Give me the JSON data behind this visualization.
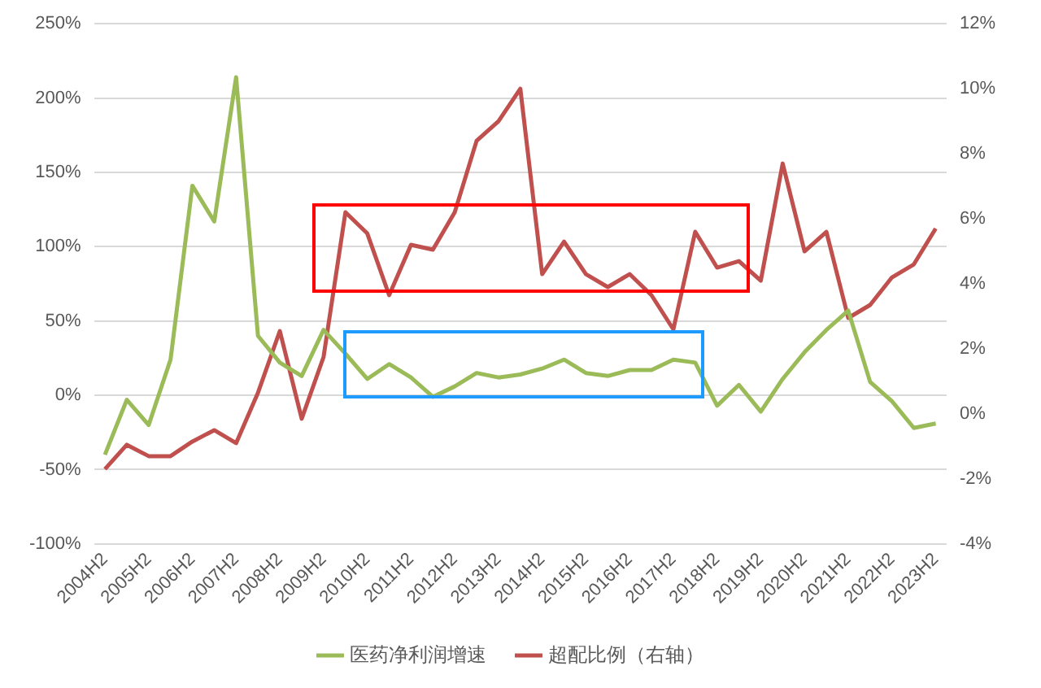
{
  "chart_data": {
    "type": "line",
    "categories": [
      "2004H2",
      null,
      "2005H2",
      null,
      "2006H2",
      null,
      "2007H2",
      null,
      "2008H2",
      null,
      "2009H2",
      null,
      "2010H2",
      null,
      "2011H2",
      null,
      "2012H2",
      null,
      "2013H2",
      null,
      "2014H2",
      null,
      "2015H2",
      null,
      "2016H2",
      null,
      "2017H2",
      null,
      "2018H2",
      null,
      "2019H2",
      null,
      "2020H2",
      null,
      "2021H2",
      null,
      "2022H2",
      null,
      "2023H2"
    ],
    "series": [
      {
        "name": "医药净利润增速",
        "color": "#9bbb59",
        "values": [
          -40,
          -3,
          -20,
          24,
          141,
          117,
          214,
          40,
          22,
          13,
          44,
          28,
          11,
          21,
          12,
          -1,
          6,
          15,
          12,
          14,
          18,
          24,
          15,
          13,
          17,
          17,
          24,
          22,
          -7,
          7,
          -11,
          11,
          29,
          44,
          57,
          9,
          -4,
          -22,
          -19
        ]
      },
      {
        "name": "超配比例（右轴）",
        "color": "#c0504d",
        "axis": "y2",
        "values": [
          -1.7,
          -0.95,
          -1.3,
          -1.3,
          -0.85,
          -0.5,
          -0.9,
          0.65,
          2.55,
          -0.15,
          1.75,
          6.2,
          5.55,
          3.65,
          5.2,
          5.05,
          6.2,
          8.4,
          9.0,
          10.0,
          4.3,
          5.3,
          4.3,
          3.9,
          4.3,
          3.65,
          2.6,
          5.6,
          4.5,
          4.7,
          4.1,
          7.7,
          5.0,
          5.6,
          2.95,
          3.35,
          4.2,
          4.6,
          5.7
        ]
      }
    ],
    "ylim": [
      -100,
      250
    ],
    "yticks": [
      {
        "value": -100,
        "label": "-100%"
      },
      {
        "value": -50,
        "label": "-50%"
      },
      {
        "value": 0,
        "label": "0%"
      },
      {
        "value": 50,
        "label": "50%"
      },
      {
        "value": 100,
        "label": "100%"
      },
      {
        "value": 150,
        "label": "150%"
      },
      {
        "value": 200,
        "label": "200%"
      },
      {
        "value": 250,
        "label": "250%"
      }
    ],
    "y2lim": [
      -4,
      12
    ],
    "y2ticks": [
      {
        "value": -4,
        "label": "-4%"
      },
      {
        "value": -2,
        "label": "-2%"
      },
      {
        "value": 0,
        "label": "0%"
      },
      {
        "value": 2,
        "label": "2%"
      },
      {
        "value": 4,
        "label": "4%"
      },
      {
        "value": 6,
        "label": "6%"
      },
      {
        "value": 8,
        "label": "8%"
      },
      {
        "value": 10,
        "label": "10%"
      },
      {
        "value": 12,
        "label": "12%"
      }
    ],
    "grid": "y",
    "legend": "bottom",
    "marker": "none",
    "line_style": "solid"
  }
}
